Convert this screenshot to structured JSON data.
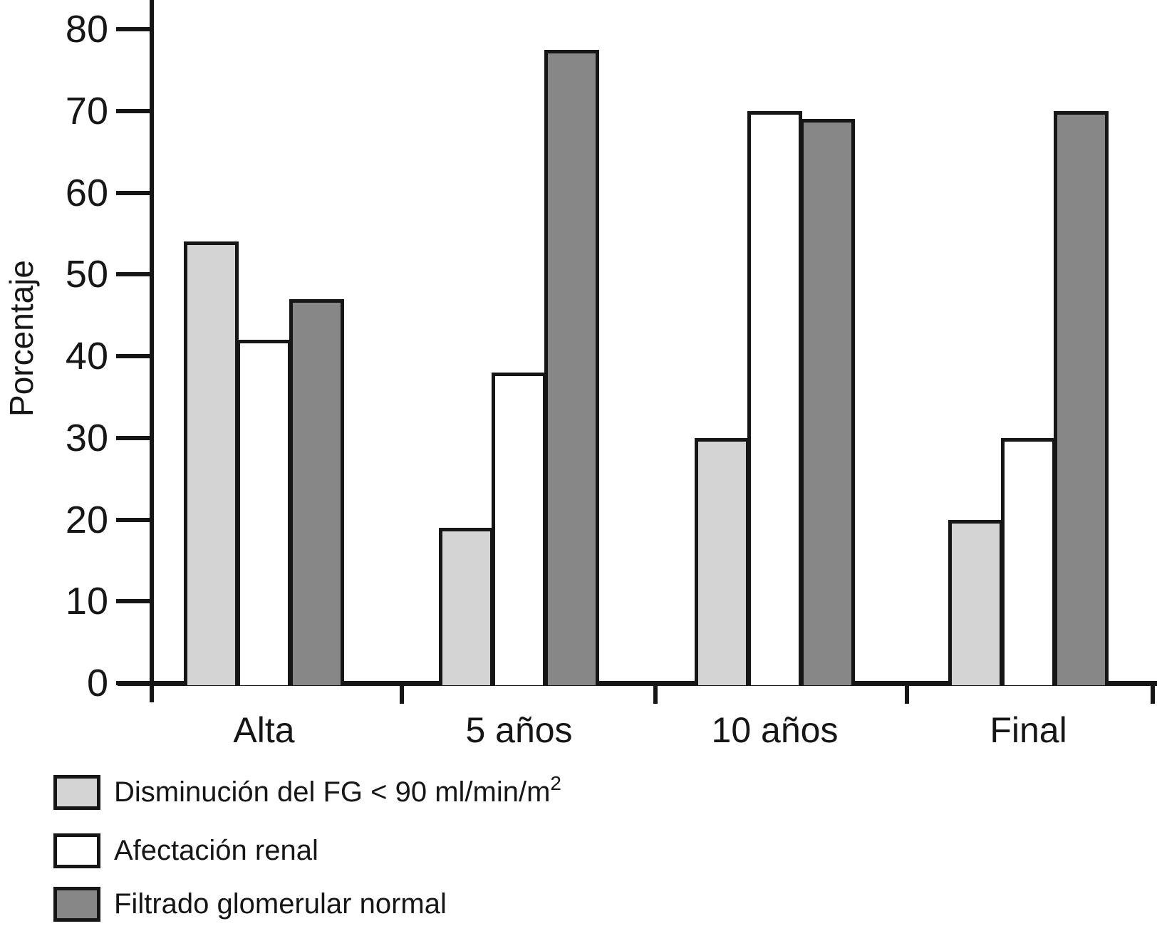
{
  "chart_data": {
    "type": "bar",
    "title": "",
    "xlabel": "",
    "ylabel": "Porcentaje",
    "categories": [
      "Alta",
      "5 años",
      "10 años",
      "Final"
    ],
    "series": [
      {
        "name": "Disminución del FG < 90 ml/min/m2",
        "legend_main": "Disminución del FG < 90 ml/min/m",
        "legend_sup": "2",
        "color": "#d4d4d4",
        "values": [
          54,
          19,
          30,
          20
        ]
      },
      {
        "name": "Afectación renal",
        "legend_main": "Afectación renal",
        "legend_sup": "",
        "color": "#ffffff",
        "values": [
          42,
          38,
          70,
          30
        ]
      },
      {
        "name": "Filtrado glomerular normal",
        "legend_main": "Filtrado glomerular normal",
        "legend_sup": "",
        "color": "#878787",
        "values": [
          47,
          77.5,
          69,
          70
        ]
      }
    ],
    "ylim": [
      0,
      85
    ],
    "yticks": [
      0,
      10,
      20,
      30,
      40,
      50,
      60,
      70,
      80
    ],
    "grid": false,
    "legend_position": "bottom-left",
    "axis_color": "#161616",
    "bar_border_color": "#161616",
    "background": "#ffffff"
  }
}
